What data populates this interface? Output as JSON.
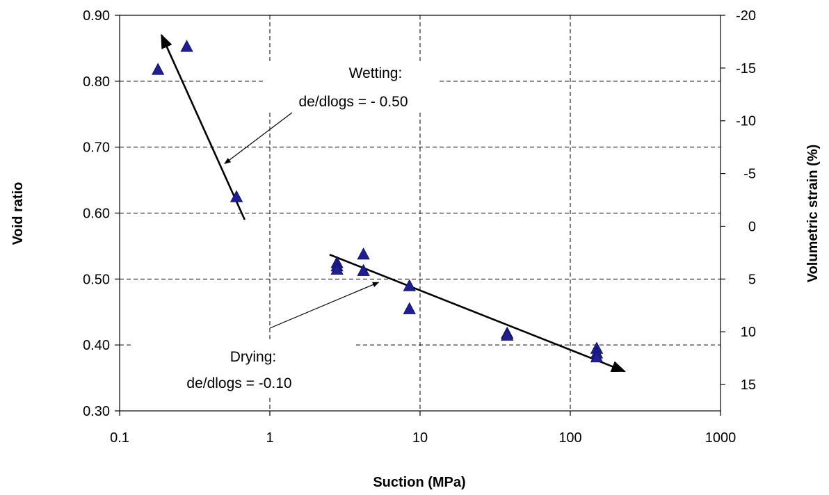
{
  "chart_data": {
    "type": "scatter",
    "xlabel": "Suction (MPa)",
    "ylabel": "Void ratio",
    "y2label": "Volumetric strain (%)",
    "x_scale": "log",
    "xlim": [
      0.1,
      1000
    ],
    "ylim": [
      0.3,
      0.9
    ],
    "y2lim": [
      -20,
      17.5
    ],
    "x_ticks": [
      "0.1",
      "1",
      "10",
      "100",
      "1000"
    ],
    "y_ticks": [
      "0.30",
      "0.40",
      "0.50",
      "0.60",
      "0.70",
      "0.80",
      "0.90"
    ],
    "y2_ticks": [
      "-20",
      "-15",
      "-10",
      "-5",
      "0",
      "5",
      "10",
      "15"
    ],
    "grid": true,
    "marker_color": "#1f1f8f",
    "series": [
      {
        "marker": "triangle",
        "points": [
          {
            "x": 0.18,
            "y": 0.818
          },
          {
            "x": 0.28,
            "y": 0.853
          },
          {
            "x": 0.6,
            "y": 0.625
          },
          {
            "x": 2.8,
            "y": 0.525
          },
          {
            "x": 2.8,
            "y": 0.52
          },
          {
            "x": 2.8,
            "y": 0.515
          },
          {
            "x": 4.2,
            "y": 0.538
          },
          {
            "x": 4.2,
            "y": 0.513
          },
          {
            "x": 8.5,
            "y": 0.49
          },
          {
            "x": 8.5,
            "y": 0.455
          },
          {
            "x": 38,
            "y": 0.418
          },
          {
            "x": 38,
            "y": 0.415
          },
          {
            "x": 150,
            "y": 0.395
          },
          {
            "x": 150,
            "y": 0.388
          },
          {
            "x": 150,
            "y": 0.382
          }
        ]
      }
    ],
    "trend_lines": [
      {
        "from": {
          "x": 0.68,
          "y": 0.59
        },
        "to": {
          "x": 0.19,
          "y": 0.87
        }
      },
      {
        "from": {
          "x": 2.5,
          "y": 0.537
        },
        "to": {
          "x": 230,
          "y": 0.36
        }
      }
    ],
    "annotations": [
      {
        "lines": [
          "Wetting:",
          "de/dlogs = - 0.50"
        ],
        "arrow_to": {
          "x": 0.5,
          "y": 0.675
        }
      },
      {
        "lines": [
          "Drying:",
          "de/dlogs = -0.10"
        ],
        "arrow_to": {
          "x": 5.3,
          "y": 0.495
        }
      }
    ]
  }
}
